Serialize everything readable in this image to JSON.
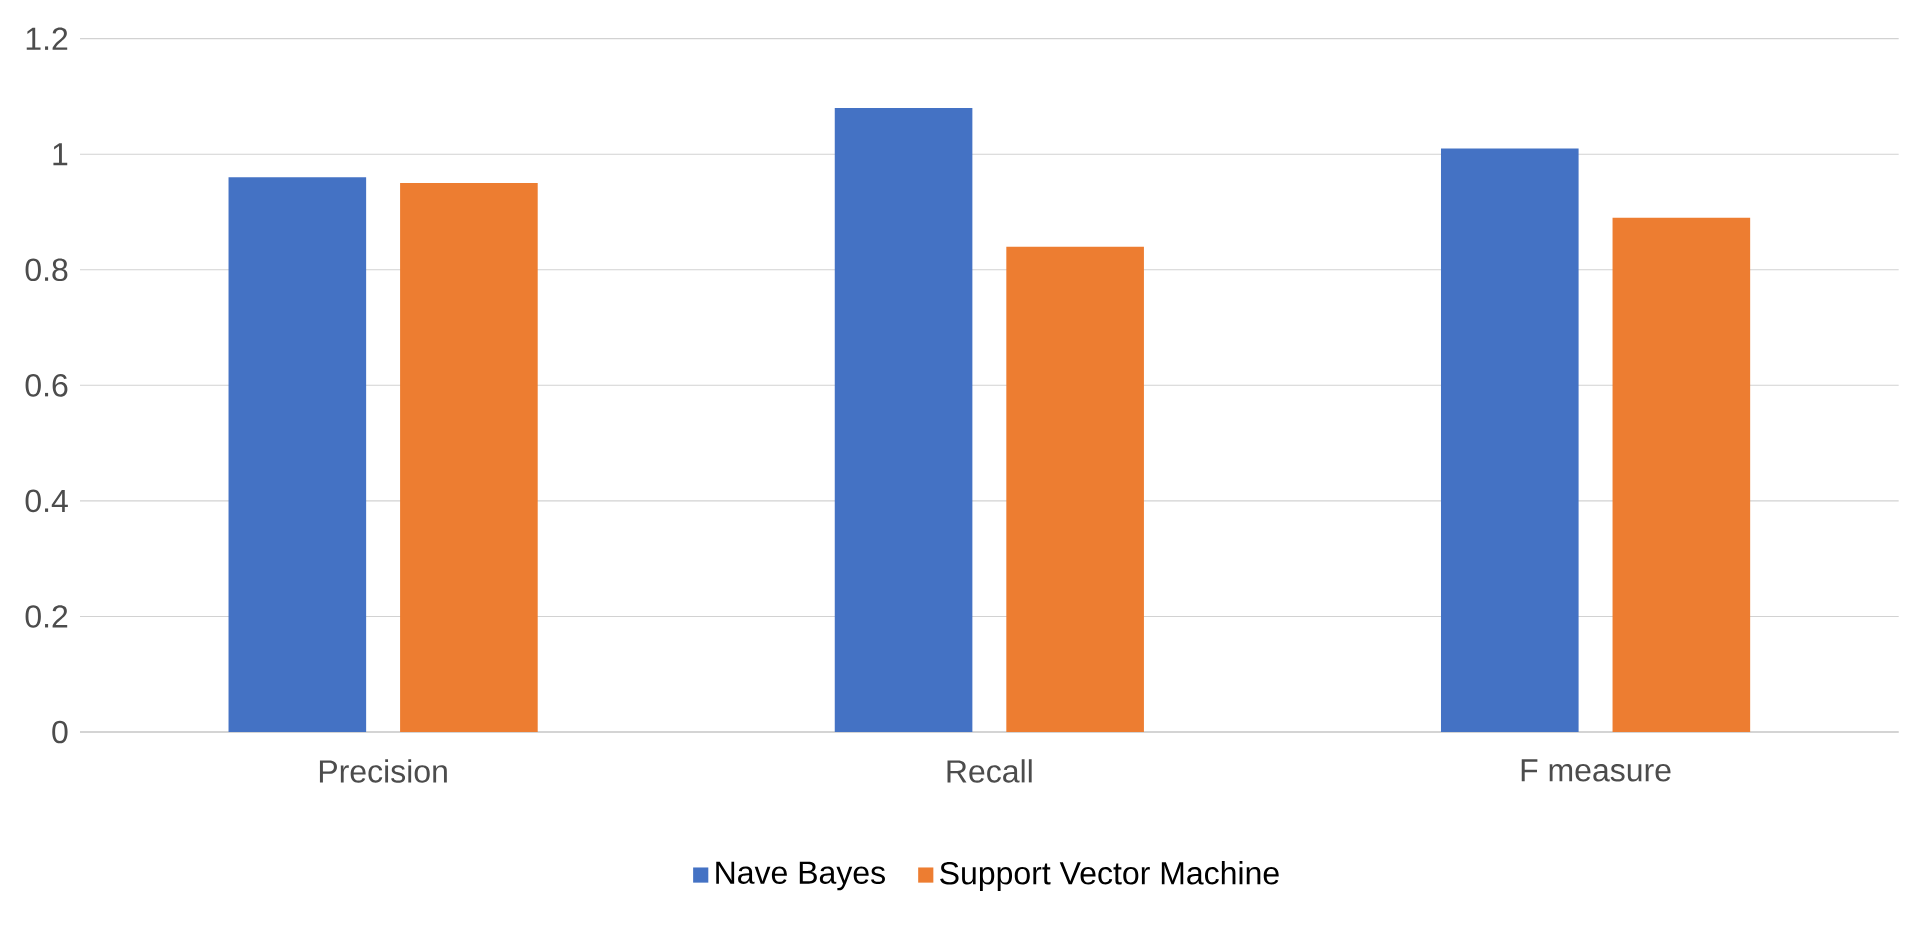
{
  "chart_data": {
    "type": "bar",
    "categories": [
      "Precision",
      "Recall",
      "F measure"
    ],
    "series": [
      {
        "name": "Nave Bayes",
        "color": "#4472c4",
        "values": [
          0.96,
          1.08,
          1.01
        ]
      },
      {
        "name": "Support Vector Machine",
        "color": "#ed7d31",
        "values": [
          0.95,
          0.84,
          0.89
        ]
      }
    ],
    "ylim": [
      0,
      1.2
    ],
    "yticks": [
      0,
      0.2,
      0.4,
      0.6,
      0.8,
      1,
      1.2
    ],
    "grid": "y",
    "legend": "bottom"
  }
}
